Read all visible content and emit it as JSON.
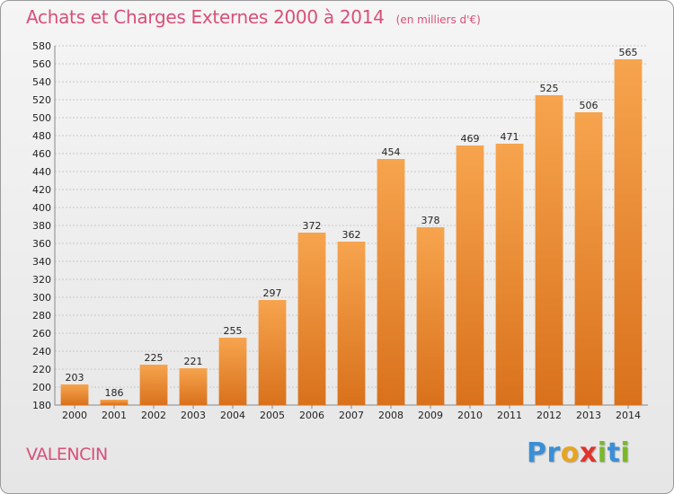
{
  "header": {
    "title": "Achats et Charges Externes 2000 à 2014",
    "unit": "(en milliers d'€)"
  },
  "footer": {
    "commune": "VALENCIN",
    "logo": [
      "P",
      "r",
      "o",
      "x",
      "i",
      "t",
      "i"
    ]
  },
  "colors": {
    "title": "#d94f78",
    "bar_top": "#f7a44e",
    "bar_bottom": "#d9711c",
    "grid": "#c8c8c8",
    "logo_letters": [
      "#3a8fd6",
      "#3a8fd6",
      "#e8a320",
      "#e0342c",
      "#7ab829",
      "#3a8fd6",
      "#7ab829"
    ]
  },
  "chart_data": {
    "type": "bar",
    "title": "Achats et Charges Externes 2000 à 2014",
    "subtitle": "(en milliers d'€)",
    "xlabel": "",
    "ylabel": "",
    "categories": [
      "2000",
      "2001",
      "2002",
      "2003",
      "2004",
      "2005",
      "2006",
      "2007",
      "2008",
      "2009",
      "2010",
      "2011",
      "2012",
      "2013",
      "2014"
    ],
    "values": [
      203,
      186,
      225,
      221,
      255,
      297,
      372,
      362,
      454,
      378,
      469,
      471,
      525,
      506,
      565
    ],
    "ylim": [
      180,
      580
    ],
    "yticks": [
      180,
      200,
      220,
      240,
      260,
      280,
      300,
      320,
      340,
      360,
      380,
      400,
      420,
      440,
      460,
      480,
      500,
      520,
      540,
      560,
      580
    ],
    "grid": true,
    "legend": "none"
  }
}
